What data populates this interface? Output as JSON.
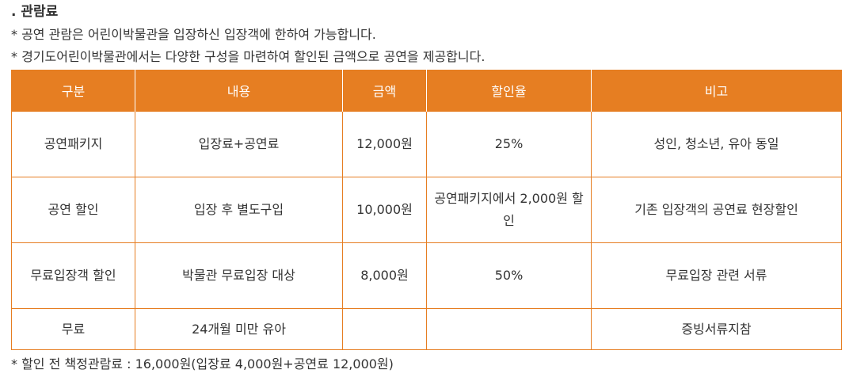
{
  "title": ". 관람료",
  "notes": [
    "* 공연 관람은 어린이박물관을 입장하신 입장객에 한하여 가능합니다.",
    "* 경기도어린이박물관에서는 다양한 구성을 마련하여 할인된 금액으로 공연을 제공합니다."
  ],
  "table": {
    "headers": [
      "구분",
      "내용",
      "금액",
      "할인율",
      "비고"
    ],
    "rows": [
      [
        "공연패키지",
        "입장료+공연료",
        "12,000원",
        "25%",
        "성인, 청소년, 유아 동일"
      ],
      [
        "공연 할인",
        "입장 후 별도구입",
        "10,000원",
        "공연패키지에서 2,000원 할인",
        "기존 입장객의 공연료 현장할인"
      ],
      [
        "무료입장객 할인",
        "박물관 무료입장 대상",
        "8,000원",
        "50%",
        "무료입장 관련 서류"
      ],
      [
        "무료",
        "24개월 미만 유아",
        "",
        "",
        "증빙서류지참"
      ]
    ]
  },
  "footnote": "* 할인 전 책정관람료 : 16,000원(입장료 4,000원+공연료 12,000원)",
  "colors": {
    "header_bg": "#e67e22",
    "border": "#e67e22",
    "text": "#333333"
  }
}
